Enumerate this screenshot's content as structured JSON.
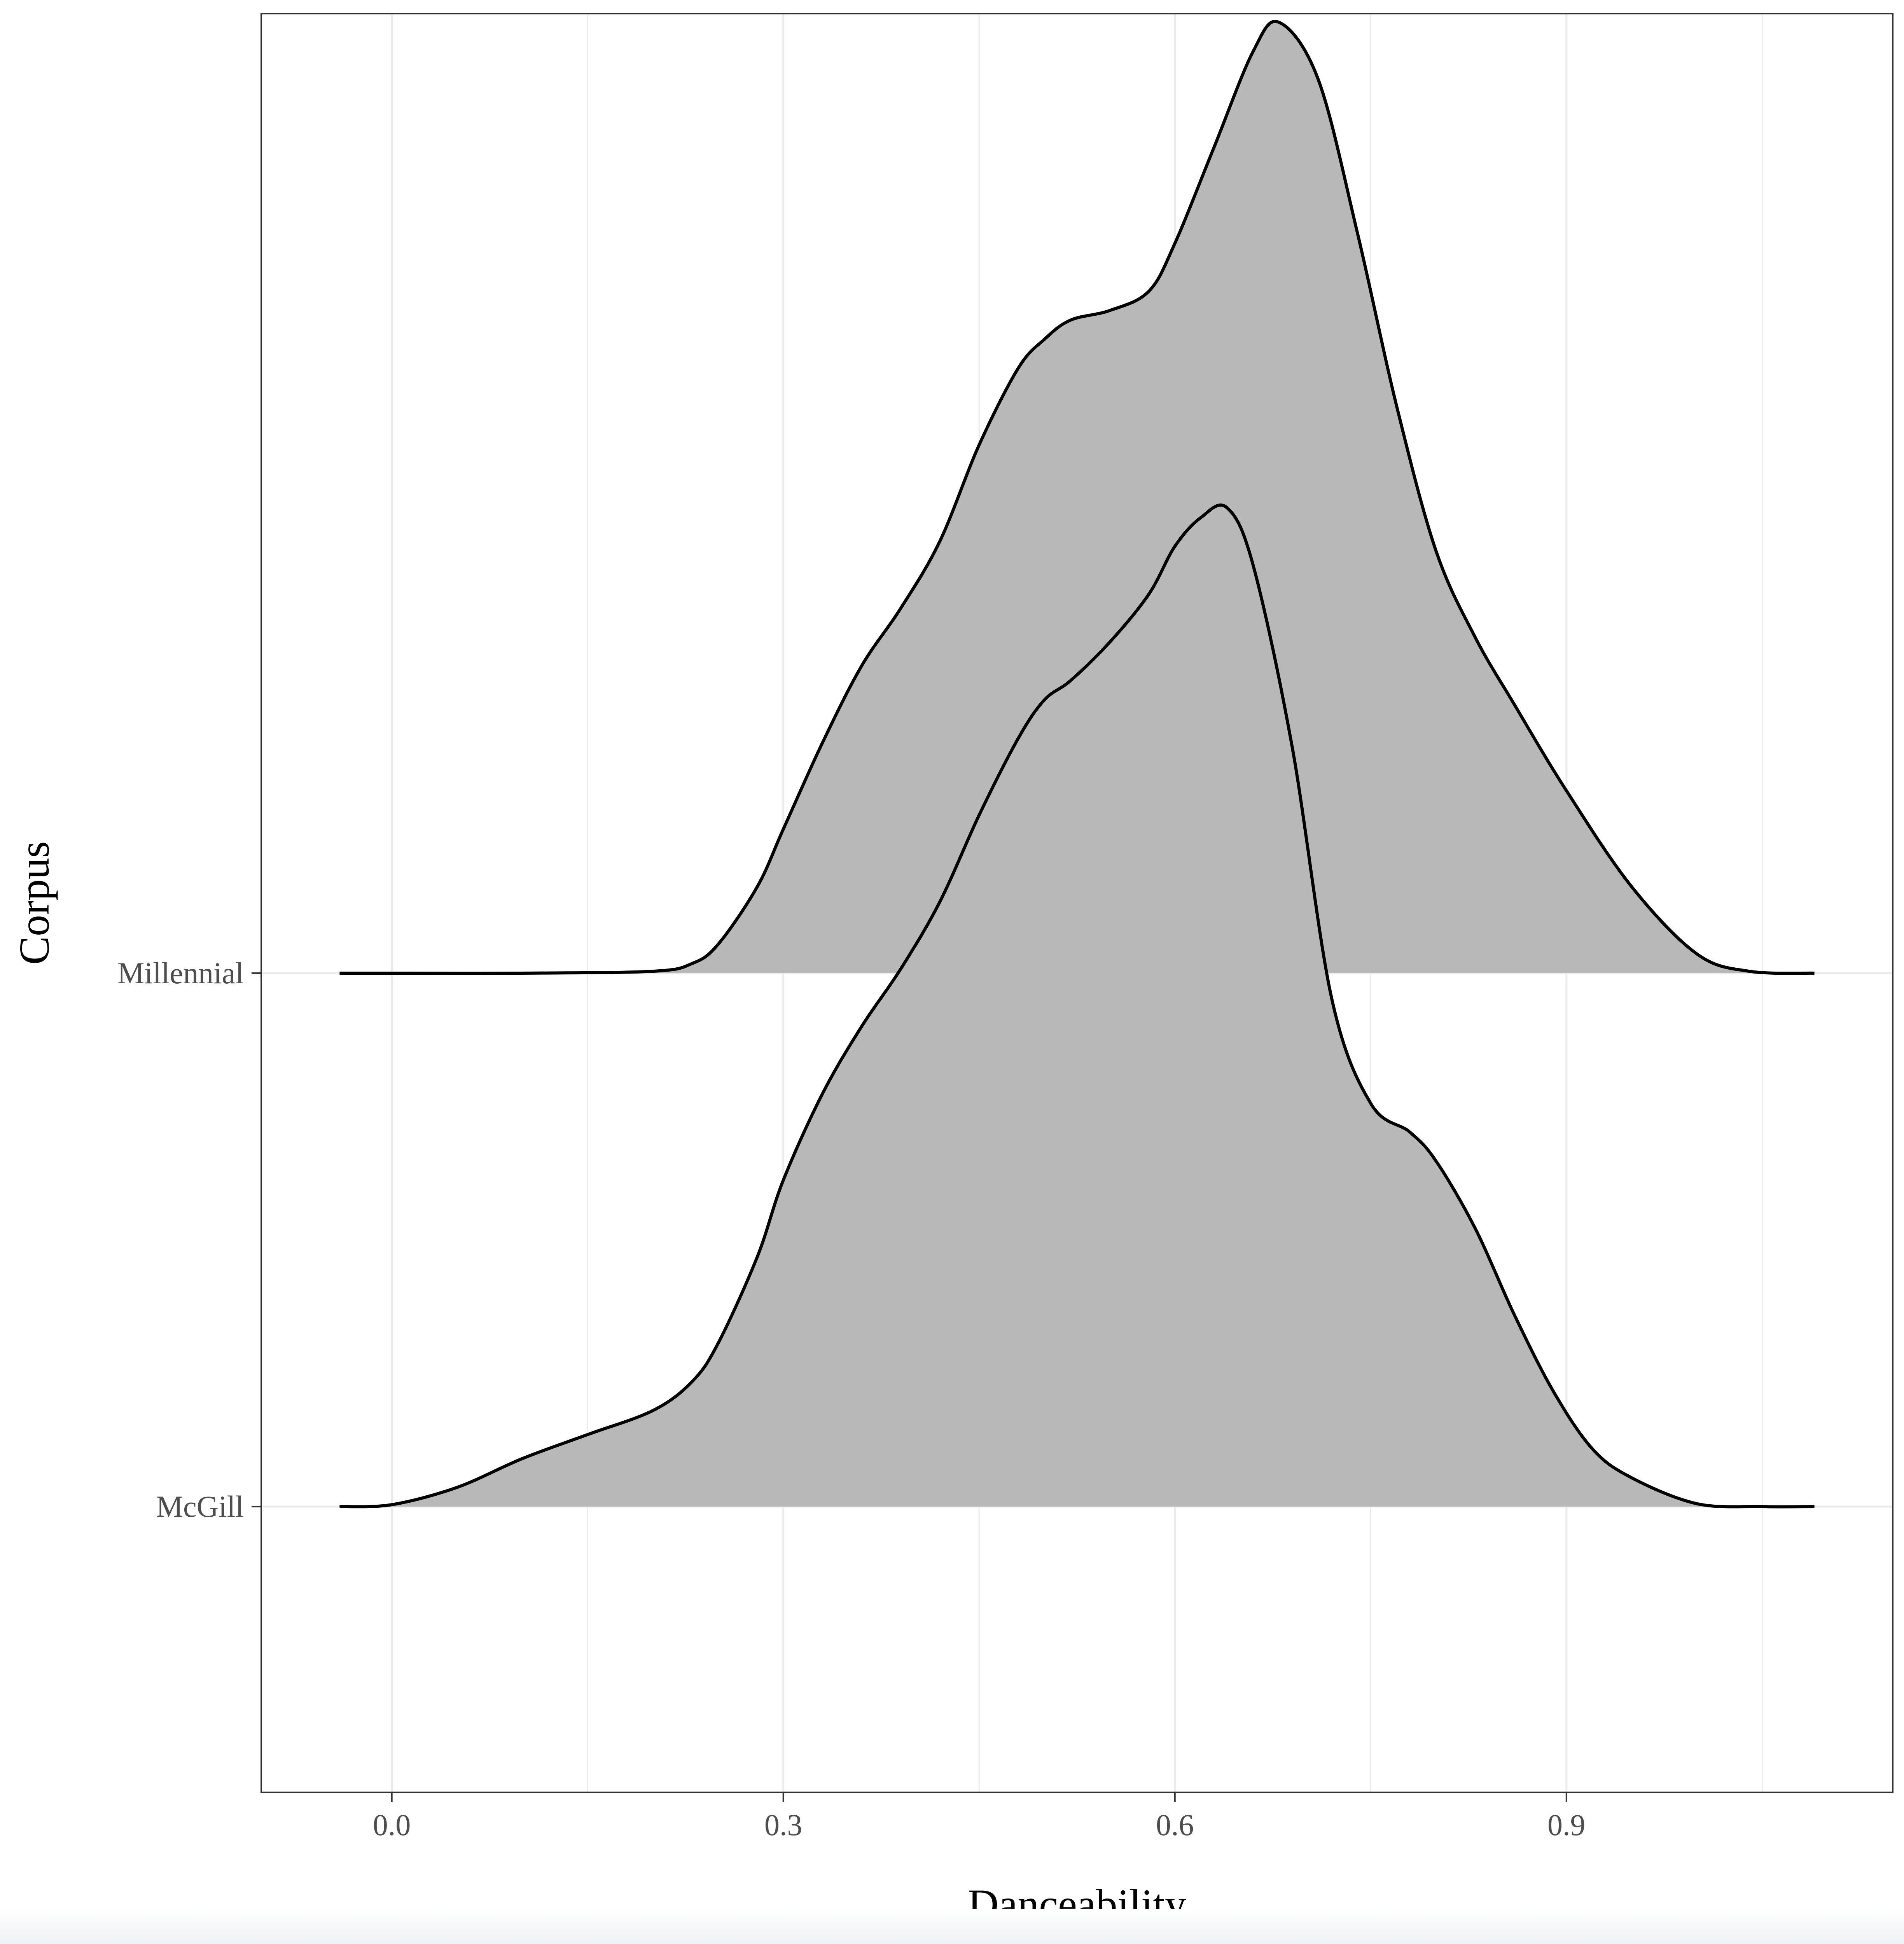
{
  "chart_data": {
    "type": "area",
    "subtype": "ridgeline-density",
    "title": "",
    "xlabel": "Danceability",
    "ylabel": "Corpus",
    "xlim": [
      -0.1,
      1.15
    ],
    "x_ticks": [
      0.0,
      0.3,
      0.6,
      0.9
    ],
    "x_tick_labels": [
      "0.0",
      "0.3",
      "0.6",
      "0.9"
    ],
    "categories": [
      "Millennial",
      "McGill"
    ],
    "grid": true,
    "legend": "none",
    "fill_color": "#b8b8b8",
    "line_color": "#000000",
    "grid_color": "#ebebeb",
    "series": [
      {
        "name": "Millennial",
        "x": [
          -0.04,
          0.0,
          0.1,
          0.2,
          0.23,
          0.25,
          0.28,
          0.3,
          0.33,
          0.36,
          0.39,
          0.42,
          0.45,
          0.48,
          0.5,
          0.52,
          0.55,
          0.58,
          0.6,
          0.63,
          0.66,
          0.68,
          0.71,
          0.74,
          0.77,
          0.8,
          0.83,
          0.86,
          0.9,
          0.95,
          1.0,
          1.04,
          1.09
        ],
        "density": [
          0.0,
          0.0,
          0.0,
          0.002,
          0.01,
          0.03,
          0.09,
          0.15,
          0.24,
          0.32,
          0.38,
          0.45,
          0.55,
          0.63,
          0.66,
          0.68,
          0.69,
          0.71,
          0.76,
          0.86,
          0.96,
          0.99,
          0.93,
          0.77,
          0.59,
          0.44,
          0.35,
          0.28,
          0.19,
          0.09,
          0.02,
          0.002,
          0.0
        ]
      },
      {
        "name": "McGill",
        "x": [
          -0.04,
          0.0,
          0.05,
          0.1,
          0.15,
          0.2,
          0.23,
          0.25,
          0.28,
          0.3,
          0.33,
          0.36,
          0.39,
          0.42,
          0.45,
          0.48,
          0.5,
          0.52,
          0.55,
          0.58,
          0.6,
          0.62,
          0.64,
          0.66,
          0.69,
          0.72,
          0.75,
          0.78,
          0.8,
          0.83,
          0.86,
          0.89,
          0.92,
          0.95,
          1.0,
          1.05,
          1.09
        ],
        "density": [
          0.0,
          0.002,
          0.02,
          0.05,
          0.075,
          0.1,
          0.13,
          0.17,
          0.26,
          0.34,
          0.43,
          0.5,
          0.56,
          0.63,
          0.72,
          0.8,
          0.84,
          0.86,
          0.9,
          0.95,
          1.0,
          1.03,
          1.04,
          0.98,
          0.79,
          0.53,
          0.42,
          0.39,
          0.36,
          0.29,
          0.2,
          0.12,
          0.06,
          0.03,
          0.003,
          0.0,
          0.0
        ]
      }
    ]
  }
}
